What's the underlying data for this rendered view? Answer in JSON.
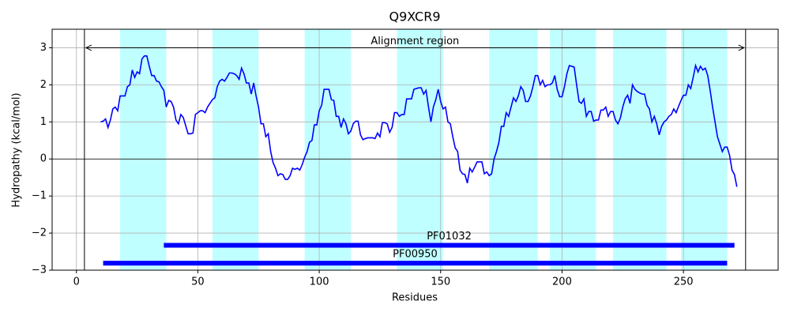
{
  "chart_data": {
    "type": "line",
    "title": "Q9XCR9",
    "xlabel": "Residues",
    "ylabel": "Hydropathy (kcal/mol)",
    "xlim": [
      -10,
      289
    ],
    "ylim": [
      -3,
      3.5
    ],
    "xticks": [
      0,
      50,
      100,
      150,
      200,
      250
    ],
    "yticks": [
      {
        "value": -3,
        "label": "−3"
      },
      {
        "value": -2,
        "label": "−2"
      },
      {
        "value": -1,
        "label": "−1"
      },
      0,
      1,
      2,
      3
    ],
    "grid": true,
    "color": "#0000ff",
    "highlight_color": "#bfffff",
    "highlight_regions": [
      [
        18,
        37
      ],
      [
        56,
        75
      ],
      [
        94,
        113
      ],
      [
        132,
        151
      ],
      [
        170,
        190
      ],
      [
        195,
        214
      ],
      [
        221,
        243
      ],
      [
        249,
        268
      ]
    ],
    "hline": 0,
    "alignment": {
      "label": "Alignment region",
      "start": 3.3,
      "end": 275.6,
      "y": 3
    },
    "domains": [
      {
        "name": "PF01032",
        "start": 36,
        "end": 271,
        "y": -2.33,
        "color": "#0000ff"
      },
      {
        "name": "PF00950",
        "start": 11,
        "end": 268,
        "y": -2.81,
        "color": "#0000ff"
      }
    ],
    "x": [
      10,
      11,
      12,
      13,
      14,
      15,
      16,
      17,
      18,
      19,
      20,
      21,
      22,
      23,
      24,
      25,
      26,
      27,
      28,
      29,
      30,
      31,
      32,
      33,
      34,
      35,
      36,
      37,
      38,
      39,
      40,
      41,
      42,
      43,
      44,
      45,
      46,
      47,
      48,
      49,
      50,
      51,
      52,
      53,
      54,
      55,
      56,
      57,
      58,
      59,
      60,
      61,
      62,
      63,
      64,
      65,
      66,
      67,
      68,
      69,
      70,
      71,
      72,
      73,
      74,
      75,
      76,
      77,
      78,
      79,
      80,
      81,
      82,
      83,
      84,
      85,
      86,
      87,
      88,
      89,
      90,
      91,
      92,
      93,
      94,
      95,
      96,
      97,
      98,
      99,
      100,
      101,
      102,
      103,
      104,
      105,
      106,
      107,
      108,
      109,
      110,
      111,
      112,
      113,
      114,
      115,
      116,
      117,
      118,
      119,
      120,
      121,
      122,
      123,
      124,
      125,
      126,
      127,
      128,
      129,
      130,
      131,
      132,
      133,
      134,
      135,
      136,
      137,
      138,
      139,
      140,
      141,
      142,
      143,
      144,
      145,
      146,
      147,
      148,
      149,
      150,
      151,
      152,
      153,
      154,
      155,
      156,
      157,
      158,
      159,
      160,
      161,
      162,
      163,
      164,
      165,
      166,
      167,
      168,
      169,
      170,
      171,
      172,
      173,
      174,
      175,
      176,
      177,
      178,
      179,
      180,
      181,
      182,
      183,
      184,
      185,
      186,
      187,
      188,
      189,
      190,
      191,
      192,
      193,
      194,
      195,
      196,
      197,
      198,
      199,
      200,
      201,
      202,
      203,
      204,
      205,
      206,
      207,
      208,
      209,
      210,
      211,
      212,
      213,
      214,
      215,
      216,
      217,
      218,
      219,
      220,
      221,
      222,
      223,
      224,
      225,
      226,
      227,
      228,
      229,
      230,
      231,
      232,
      233,
      234,
      235,
      236,
      237,
      238,
      239,
      240,
      241,
      242,
      243,
      244,
      245,
      246,
      247,
      248,
      249,
      250,
      251,
      252,
      253,
      254,
      255,
      256,
      257,
      258,
      259,
      260,
      261,
      262,
      263,
      264,
      265,
      266,
      267,
      268,
      269,
      270,
      271,
      272
    ],
    "values": [
      1.0,
      1.02,
      1.08,
      0.85,
      1.05,
      1.35,
      1.4,
      1.3,
      1.7,
      1.7,
      1.7,
      1.95,
      2.0,
      2.4,
      2.2,
      2.35,
      2.3,
      2.7,
      2.78,
      2.78,
      2.5,
      2.25,
      2.25,
      2.1,
      2.08,
      1.95,
      1.85,
      1.4,
      1.58,
      1.55,
      1.4,
      1.05,
      0.95,
      1.2,
      1.12,
      0.9,
      0.68,
      0.68,
      0.7,
      1.2,
      1.25,
      1.3,
      1.3,
      1.25,
      1.4,
      1.5,
      1.6,
      1.65,
      1.95,
      2.1,
      2.15,
      2.1,
      2.2,
      2.32,
      2.32,
      2.3,
      2.25,
      2.15,
      2.45,
      2.3,
      2.05,
      2.05,
      1.75,
      2.05,
      1.7,
      1.4,
      0.95,
      0.95,
      0.6,
      0.68,
      0.2,
      -0.1,
      -0.25,
      -0.45,
      -0.4,
      -0.42,
      -0.55,
      -0.55,
      -0.45,
      -0.25,
      -0.28,
      -0.25,
      -0.3,
      -0.15,
      0.05,
      0.2,
      0.45,
      0.5,
      0.92,
      0.92,
      1.3,
      1.45,
      1.88,
      1.88,
      1.88,
      1.6,
      1.58,
      1.15,
      1.15,
      0.85,
      1.08,
      0.95,
      0.68,
      0.75,
      0.95,
      1.02,
      1.02,
      0.65,
      0.52,
      0.55,
      0.57,
      0.57,
      0.57,
      0.55,
      0.7,
      0.6,
      0.98,
      0.98,
      0.95,
      0.72,
      0.85,
      1.25,
      1.25,
      1.15,
      1.2,
      1.2,
      1.62,
      1.62,
      1.62,
      1.88,
      1.9,
      1.92,
      1.92,
      1.75,
      1.85,
      1.4,
      1.0,
      1.4,
      1.6,
      1.88,
      1.55,
      1.35,
      1.4,
      1.0,
      0.95,
      0.6,
      0.3,
      0.2,
      -0.3,
      -0.4,
      -0.42,
      -0.65,
      -0.25,
      -0.35,
      -0.22,
      -0.08,
      -0.08,
      -0.08,
      -0.4,
      -0.35,
      -0.45,
      -0.4,
      0.0,
      0.2,
      0.45,
      0.88,
      0.88,
      1.25,
      1.15,
      1.4,
      1.65,
      1.55,
      1.7,
      1.95,
      1.85,
      1.55,
      1.55,
      1.7,
      1.95,
      2.25,
      2.25,
      2.0,
      2.12,
      1.95,
      2.0,
      2.0,
      2.05,
      2.25,
      1.88,
      1.68,
      1.68,
      1.95,
      2.3,
      2.52,
      2.5,
      2.48,
      2.0,
      1.55,
      1.5,
      1.62,
      1.15,
      1.28,
      1.28,
      1.02,
      1.05,
      1.05,
      1.32,
      1.32,
      1.4,
      1.15,
      1.28,
      1.28,
      1.05,
      0.95,
      1.1,
      1.4,
      1.62,
      1.72,
      1.5,
      2.0,
      1.88,
      1.82,
      1.78,
      1.75,
      1.75,
      1.45,
      1.35,
      1.0,
      1.15,
      0.95,
      0.65,
      0.88,
      1.0,
      1.05,
      1.15,
      1.2,
      1.35,
      1.25,
      1.42,
      1.58,
      1.72,
      1.72,
      2.0,
      1.9,
      2.2,
      2.52,
      2.35,
      2.5,
      2.4,
      2.45,
      2.25,
      1.85,
      1.4,
      1.0,
      0.6,
      0.4,
      0.2,
      0.32,
      0.32,
      0.1,
      -0.3,
      -0.42,
      -0.75
    ]
  }
}
